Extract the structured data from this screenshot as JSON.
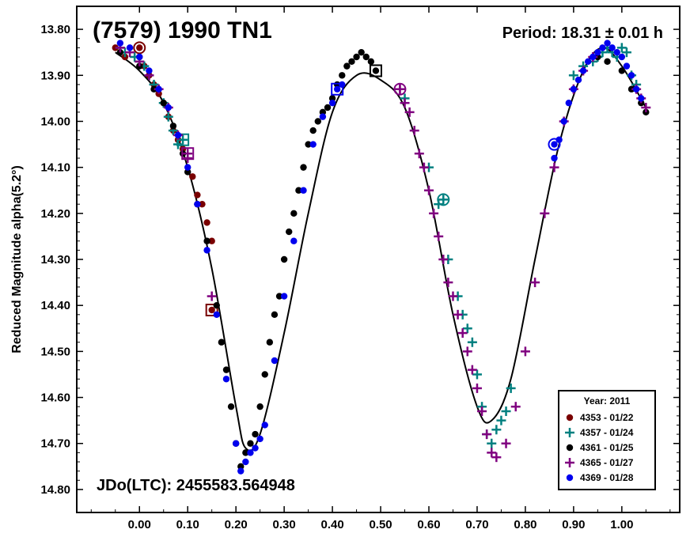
{
  "chart_data": {
    "type": "scatter",
    "title": "(7579) 1990 TN1",
    "period": "Period: 18.31 ± 0.01 h",
    "epoch": "JDo(LTC): 2455583.564948",
    "ylabel": "Reduced Magnitude alpha(5.2°)",
    "xlim": [
      -0.13,
      1.12
    ],
    "ylim": [
      13.75,
      14.85
    ],
    "y_inverted": true,
    "x_ticks": [
      0.0,
      0.1,
      0.2,
      0.3,
      0.4,
      0.5,
      0.6,
      0.7,
      0.8,
      0.9,
      1.0
    ],
    "x_tick_labels": [
      "0.00",
      "0.10",
      "0.20",
      "0.30",
      "0.40",
      "0.50",
      "0.60",
      "0.70",
      "0.80",
      "0.90",
      "1.00"
    ],
    "y_ticks": [
      13.8,
      13.9,
      14.0,
      14.1,
      14.2,
      14.3,
      14.4,
      14.5,
      14.6,
      14.7,
      14.8
    ],
    "y_tick_labels": [
      "13.80",
      "13.90",
      "14.00",
      "14.10",
      "14.20",
      "14.30",
      "14.40",
      "14.50",
      "14.60",
      "14.70",
      "14.80"
    ],
    "legend": {
      "title": "Year: 2011",
      "placement": "bottom-right"
    },
    "fit_curve": {
      "x": [
        -0.05,
        0.0,
        0.05,
        0.1,
        0.15,
        0.2,
        0.22,
        0.25,
        0.3,
        0.35,
        0.4,
        0.45,
        0.5,
        0.55,
        0.6,
        0.65,
        0.7,
        0.73,
        0.77,
        0.82,
        0.87,
        0.92,
        0.96,
        1.0,
        1.05
      ],
      "y": [
        13.85,
        13.89,
        13.96,
        14.1,
        14.32,
        14.62,
        14.71,
        14.68,
        14.46,
        14.2,
        13.98,
        13.9,
        13.91,
        13.97,
        14.15,
        14.42,
        14.62,
        14.65,
        14.56,
        14.3,
        14.05,
        13.89,
        13.84,
        13.88,
        13.97
      ]
    },
    "series": [
      {
        "name": "4353 - 01/22",
        "color": "#7a0000",
        "marker": "dot",
        "x": [
          -0.05,
          -0.03,
          0.0,
          0.01,
          0.02,
          0.03,
          0.04,
          0.05,
          0.06,
          0.07,
          0.08,
          0.09,
          0.11,
          0.12,
          0.13,
          0.14,
          0.15
        ],
        "y": [
          13.84,
          13.86,
          13.86,
          13.88,
          13.9,
          13.92,
          13.94,
          13.96,
          13.99,
          14.02,
          14.04,
          14.06,
          14.12,
          14.16,
          14.18,
          14.22,
          14.26
        ],
        "open_markers": [
          {
            "x": 0.0,
            "y": 13.84,
            "shape": "circle"
          },
          {
            "x": 0.15,
            "y": 14.41,
            "shape": "square"
          }
        ]
      },
      {
        "name": "4357 - 01/24",
        "color": "#008080",
        "marker": "plus",
        "x": [
          -0.04,
          -0.03,
          -0.01,
          0.0,
          0.01,
          0.02,
          0.03,
          0.05,
          0.06,
          0.07,
          0.08,
          0.55,
          0.6,
          0.62,
          0.64,
          0.66,
          0.67,
          0.68,
          0.69,
          0.7,
          0.71,
          0.72,
          0.73,
          0.74,
          0.75,
          0.76,
          0.77,
          0.9,
          0.92,
          0.94,
          0.95,
          0.96,
          0.97,
          0.98,
          0.99,
          1.0,
          1.01,
          1.02,
          1.03
        ],
        "y": [
          13.84,
          13.85,
          13.86,
          13.87,
          13.88,
          13.9,
          13.92,
          13.96,
          13.99,
          14.02,
          14.05,
          13.95,
          14.1,
          14.18,
          14.3,
          14.38,
          14.42,
          14.45,
          14.48,
          14.55,
          14.62,
          14.68,
          14.7,
          14.67,
          14.65,
          14.63,
          14.58,
          13.9,
          13.88,
          13.87,
          13.86,
          13.85,
          13.84,
          13.85,
          13.86,
          13.84,
          13.85,
          13.9,
          13.92
        ],
        "open_markers": [
          {
            "x": 0.63,
            "y": 14.17,
            "shape": "circle"
          },
          {
            "x": 0.09,
            "y": 14.04,
            "shape": "square"
          }
        ]
      },
      {
        "name": "4361 - 01/25",
        "color": "#000000",
        "marker": "dot",
        "x": [
          -0.04,
          0.0,
          0.03,
          0.05,
          0.07,
          0.09,
          0.1,
          0.12,
          0.14,
          0.16,
          0.17,
          0.18,
          0.19,
          0.2,
          0.21,
          0.22,
          0.23,
          0.24,
          0.25,
          0.26,
          0.27,
          0.28,
          0.29,
          0.3,
          0.31,
          0.32,
          0.33,
          0.34,
          0.35,
          0.36,
          0.37,
          0.38,
          0.39,
          0.4,
          0.41,
          0.42,
          0.43,
          0.44,
          0.45,
          0.46,
          0.47,
          0.48,
          0.95,
          0.97,
          1.0,
          1.02,
          1.04,
          1.05
        ],
        "y": [
          13.85,
          13.88,
          13.93,
          13.96,
          14.01,
          14.07,
          14.11,
          14.18,
          14.26,
          14.4,
          14.48,
          14.54,
          14.62,
          14.7,
          14.75,
          14.72,
          14.7,
          14.68,
          14.62,
          14.55,
          14.48,
          14.42,
          14.38,
          14.3,
          14.24,
          14.2,
          14.15,
          14.1,
          14.05,
          14.02,
          14.0,
          13.98,
          13.97,
          13.95,
          13.92,
          13.9,
          13.88,
          13.87,
          13.86,
          13.85,
          13.86,
          13.87,
          13.86,
          13.87,
          13.89,
          13.93,
          13.96,
          13.98
        ],
        "open_markers": [
          {
            "x": 0.49,
            "y": 13.89,
            "shape": "square"
          }
        ]
      },
      {
        "name": "4365 - 01/27",
        "color": "#800080",
        "marker": "plus",
        "x": [
          -0.04,
          -0.02,
          0.0,
          0.02,
          0.04,
          0.06,
          0.08,
          0.1,
          0.15,
          0.54,
          0.55,
          0.56,
          0.57,
          0.58,
          0.59,
          0.6,
          0.61,
          0.62,
          0.63,
          0.64,
          0.65,
          0.66,
          0.67,
          0.68,
          0.69,
          0.7,
          0.71,
          0.72,
          0.73,
          0.74,
          0.76,
          0.78,
          0.8,
          0.82,
          0.84,
          0.86,
          0.88,
          0.9,
          0.92,
          0.94,
          1.03,
          1.04,
          1.05
        ],
        "y": [
          13.84,
          13.85,
          13.87,
          13.9,
          13.93,
          13.97,
          14.03,
          14.08,
          14.38,
          13.93,
          13.96,
          13.98,
          14.02,
          14.07,
          14.1,
          14.15,
          14.2,
          14.25,
          14.3,
          14.35,
          14.38,
          14.42,
          14.46,
          14.5,
          14.54,
          14.58,
          14.63,
          14.68,
          14.72,
          14.73,
          14.7,
          14.62,
          14.5,
          14.35,
          14.2,
          14.1,
          14.0,
          13.93,
          13.89,
          13.86,
          13.93,
          13.95,
          13.97
        ],
        "open_markers": [
          {
            "x": 0.54,
            "y": 13.93,
            "shape": "circle"
          },
          {
            "x": 0.1,
            "y": 14.07,
            "shape": "square"
          }
        ]
      },
      {
        "name": "4369 - 01/28",
        "color": "#0000ee",
        "marker": "dot",
        "x": [
          -0.04,
          -0.02,
          0.0,
          0.02,
          0.04,
          0.06,
          0.08,
          0.1,
          0.12,
          0.14,
          0.16,
          0.18,
          0.2,
          0.21,
          0.22,
          0.23,
          0.24,
          0.25,
          0.26,
          0.28,
          0.3,
          0.32,
          0.34,
          0.36,
          0.38,
          0.4,
          0.42,
          0.86,
          0.87,
          0.88,
          0.89,
          0.9,
          0.91,
          0.92,
          0.93,
          0.94,
          0.95,
          0.96,
          0.97,
          0.98,
          0.99,
          1.0,
          1.01,
          1.02,
          1.03,
          1.04
        ],
        "y": [
          13.83,
          13.84,
          13.86,
          13.89,
          13.93,
          13.97,
          14.03,
          14.1,
          14.18,
          14.28,
          14.42,
          14.56,
          14.7,
          14.76,
          14.74,
          14.72,
          14.71,
          14.69,
          14.66,
          14.52,
          14.38,
          14.26,
          14.15,
          14.05,
          13.99,
          13.96,
          13.92,
          14.08,
          14.04,
          14.0,
          13.96,
          13.93,
          13.91,
          13.89,
          13.87,
          13.86,
          13.85,
          13.84,
          13.83,
          13.84,
          13.85,
          13.86,
          13.88,
          13.9,
          13.93,
          13.95
        ],
        "open_markers": [
          {
            "x": 0.41,
            "y": 13.93,
            "shape": "square"
          },
          {
            "x": 0.86,
            "y": 14.05,
            "shape": "circle"
          }
        ]
      }
    ]
  }
}
